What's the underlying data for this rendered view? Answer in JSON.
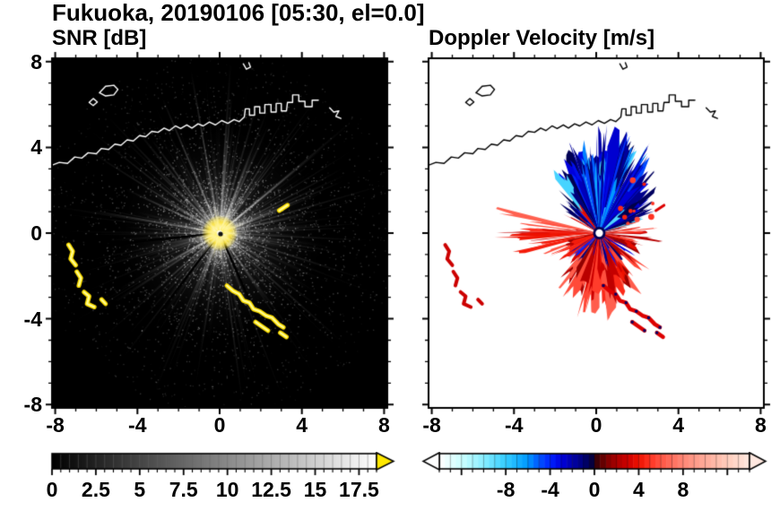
{
  "title": "Fukuoka, 20190106 [05:30, el=0.0]",
  "panels": {
    "snr": {
      "title": "SNR [dB]",
      "x_tick_labels": [
        "-8",
        "-4",
        "0",
        "4",
        "8"
      ],
      "y_tick_labels": [
        "-8",
        "-4",
        "0",
        "4",
        "8"
      ]
    },
    "doppler": {
      "title": "Doppler Velocity [m/s]",
      "x_tick_labels": [
        "-8",
        "-4",
        "0",
        "4",
        "8"
      ]
    }
  },
  "chart_data": [
    {
      "type": "heatmap",
      "title": "SNR [dB]",
      "xlim": [
        -8.2,
        8.2
      ],
      "ylim": [
        -8.2,
        8.2
      ],
      "xticks": [
        -8,
        -4,
        0,
        4,
        8
      ],
      "yticks": [
        -8,
        -4,
        0,
        4,
        8
      ],
      "background": "#000000",
      "radar_origin": [
        0,
        0
      ],
      "shadow_ray_angles_deg": [
        186,
        233,
        294
      ],
      "clutter_color": "#ffe000",
      "description": "Radar SNR PPI scan: bright white-yellow core at origin, gray radial beams and speckle on black background, yellow ground-clutter arcs near x=-7..-6 / y=-0.5..-3.5 and along x=0.3..3.2 / y=-2.4..-4.9, white coastline outline across top of panel",
      "colorbar": {
        "min": 0,
        "max": 17.5,
        "scale_max_est": 18.5,
        "tick_values": [
          0,
          2.5,
          5,
          7.5,
          10,
          12.5,
          15,
          17.5
        ],
        "tick_labels": [
          "0",
          "2.5",
          "5",
          "7.5",
          "10",
          "12.5",
          "15",
          "17.5"
        ],
        "start_color": "#000000",
        "end_color": "#ffffff",
        "over_arrow_color": "#ffe800"
      }
    },
    {
      "type": "heatmap",
      "title": "Doppler Velocity [m/s]",
      "xlim": [
        -8.2,
        8.2
      ],
      "ylim": [
        -8.2,
        8.2
      ],
      "xticks": [
        -8,
        -4,
        0,
        4,
        8
      ],
      "yticks": [
        -8,
        -4,
        0,
        4,
        8
      ],
      "background": "#ffffff",
      "radar_origin": [
        0,
        0
      ],
      "fan": {
        "blue_sector_deg": [
          15,
          145
        ],
        "blue_max_radius_units": 4.4,
        "red_left_spike_deg": [
          165,
          207
        ],
        "red_lower_sector_deg": [
          192,
          344
        ],
        "red_max_radius_units": 4.7
      },
      "description": "Doppler velocity PPI: blue (negative) jagged fan above and upper-right of origin, red (positive) spokes to the left, below and lower-right of origin, red clutter spots matching SNR clutter, black coastline outline across top of panel",
      "colorbar": {
        "scale_range_est": [
          -14,
          14
        ],
        "tick_values": [
          -8,
          -4,
          0,
          4,
          8
        ],
        "tick_labels": [
          "-8",
          "-4",
          "0",
          "4",
          "8"
        ],
        "colormap": [
          [
            -14,
            "#ffffff"
          ],
          [
            -12,
            "#ccffff"
          ],
          [
            -10,
            "#88eeff"
          ],
          [
            -8,
            "#33ccff"
          ],
          [
            -6,
            "#0099ff"
          ],
          [
            -5,
            "#0055ff"
          ],
          [
            -4,
            "#0022ff"
          ],
          [
            -3,
            "#0000dd"
          ],
          [
            -2,
            "#0000aa"
          ],
          [
            -1,
            "#000077"
          ],
          [
            -0.3,
            "#000044"
          ],
          [
            0.3,
            "#440000"
          ],
          [
            1,
            "#770000"
          ],
          [
            2,
            "#aa0000"
          ],
          [
            3,
            "#cc0000"
          ],
          [
            4,
            "#ee1100"
          ],
          [
            5,
            "#ff3322"
          ],
          [
            6,
            "#ff5544"
          ],
          [
            8,
            "#ff8877"
          ],
          [
            10,
            "#ffaa99"
          ],
          [
            12,
            "#ffccbb"
          ],
          [
            14,
            "#ffe8e0"
          ]
        ]
      }
    }
  ],
  "map_overlay": {
    "coastlines": [
      [
        [
          -8.2,
          3.15
        ],
        [
          -7.8,
          3.3
        ],
        [
          -7.4,
          3.25
        ],
        [
          -7.05,
          3.55
        ],
        [
          -6.7,
          3.5
        ],
        [
          -6.4,
          3.75
        ],
        [
          -6.0,
          3.7
        ],
        [
          -5.75,
          3.95
        ],
        [
          -5.4,
          3.9
        ],
        [
          -5.1,
          4.15
        ],
        [
          -4.8,
          4.1
        ],
        [
          -4.5,
          4.35
        ],
        [
          -4.2,
          4.3
        ],
        [
          -3.9,
          4.55
        ],
        [
          -3.6,
          4.5
        ],
        [
          -3.3,
          4.75
        ],
        [
          -3.0,
          4.7
        ],
        [
          -2.7,
          4.9
        ],
        [
          -2.45,
          4.78
        ],
        [
          -2.15,
          5.0
        ],
        [
          -1.9,
          4.88
        ],
        [
          -1.6,
          5.05
        ],
        [
          -1.35,
          4.9
        ],
        [
          -1.05,
          5.1
        ],
        [
          -0.8,
          5.0
        ],
        [
          -0.5,
          5.18
        ],
        [
          -0.2,
          5.05
        ],
        [
          0.1,
          5.25
        ],
        [
          0.4,
          5.12
        ],
        [
          0.7,
          5.3
        ],
        [
          0.95,
          5.2
        ],
        [
          1.2,
          5.42
        ],
        [
          1.25,
          5.8
        ],
        [
          1.45,
          5.8
        ],
        [
          1.45,
          5.5
        ],
        [
          1.7,
          5.5
        ],
        [
          1.7,
          5.9
        ],
        [
          1.95,
          5.9
        ],
        [
          1.95,
          5.6
        ],
        [
          2.2,
          5.6
        ],
        [
          2.2,
          6.0
        ],
        [
          2.5,
          6.0
        ],
        [
          2.5,
          5.65
        ],
        [
          2.75,
          5.65
        ],
        [
          2.75,
          6.05
        ],
        [
          3.0,
          6.05
        ],
        [
          3.0,
          5.7
        ],
        [
          3.25,
          5.7
        ],
        [
          3.3,
          6.1
        ],
        [
          3.55,
          6.1
        ],
        [
          3.55,
          6.45
        ],
        [
          3.85,
          6.45
        ],
        [
          3.85,
          6.15
        ],
        [
          4.15,
          6.15
        ],
        [
          4.15,
          5.9
        ],
        [
          4.5,
          5.9
        ],
        [
          4.5,
          6.2
        ],
        [
          4.8,
          6.2
        ]
      ],
      [
        [
          -5.85,
          6.55
        ],
        [
          -5.55,
          6.85
        ],
        [
          -5.15,
          6.9
        ],
        [
          -4.95,
          6.7
        ],
        [
          -5.15,
          6.45
        ],
        [
          -5.55,
          6.4
        ],
        [
          -5.85,
          6.55
        ]
      ],
      [
        [
          -6.35,
          6.1
        ],
        [
          -6.15,
          6.28
        ],
        [
          -5.95,
          6.12
        ],
        [
          -6.15,
          5.95
        ],
        [
          -6.35,
          6.1
        ]
      ],
      [
        [
          1.15,
          7.9
        ],
        [
          1.3,
          7.65
        ],
        [
          1.5,
          7.75
        ],
        [
          1.42,
          7.95
        ]
      ],
      [
        [
          5.35,
          5.85
        ],
        [
          5.55,
          5.65
        ],
        [
          5.8,
          5.7
        ],
        [
          5.65,
          5.45
        ],
        [
          5.9,
          5.35
        ]
      ]
    ],
    "clutter_arcs": [
      [
        [
          -7.35,
          -0.55
        ],
        [
          -7.15,
          -0.85
        ],
        [
          -7.25,
          -1.2
        ],
        [
          -7.0,
          -1.5
        ]
      ],
      [
        [
          -6.95,
          -1.8
        ],
        [
          -6.75,
          -2.1
        ],
        [
          -6.85,
          -2.45
        ]
      ],
      [
        [
          -6.6,
          -2.75
        ],
        [
          -6.35,
          -2.95
        ],
        [
          -6.45,
          -3.3
        ],
        [
          -6.1,
          -3.45
        ]
      ],
      [
        [
          -5.75,
          -3.1
        ],
        [
          -5.55,
          -3.3
        ]
      ]
    ],
    "clutter_chain": [
      [
        [
          0.35,
          -2.45
        ],
        [
          0.65,
          -2.7
        ],
        [
          0.95,
          -2.85
        ],
        [
          1.15,
          -3.15
        ],
        [
          1.45,
          -3.25
        ],
        [
          1.65,
          -3.55
        ],
        [
          1.95,
          -3.65
        ],
        [
          2.25,
          -3.85
        ],
        [
          2.55,
          -3.95
        ],
        [
          2.85,
          -4.25
        ],
        [
          3.1,
          -4.4
        ]
      ],
      [
        [
          1.75,
          -4.15
        ],
        [
          2.05,
          -4.35
        ],
        [
          2.35,
          -4.55
        ]
      ],
      [
        [
          2.95,
          -4.65
        ],
        [
          3.25,
          -4.85
        ]
      ]
    ],
    "spark": [
      [
        2.9,
        1.05
      ],
      [
        3.3,
        1.3
      ]
    ]
  }
}
